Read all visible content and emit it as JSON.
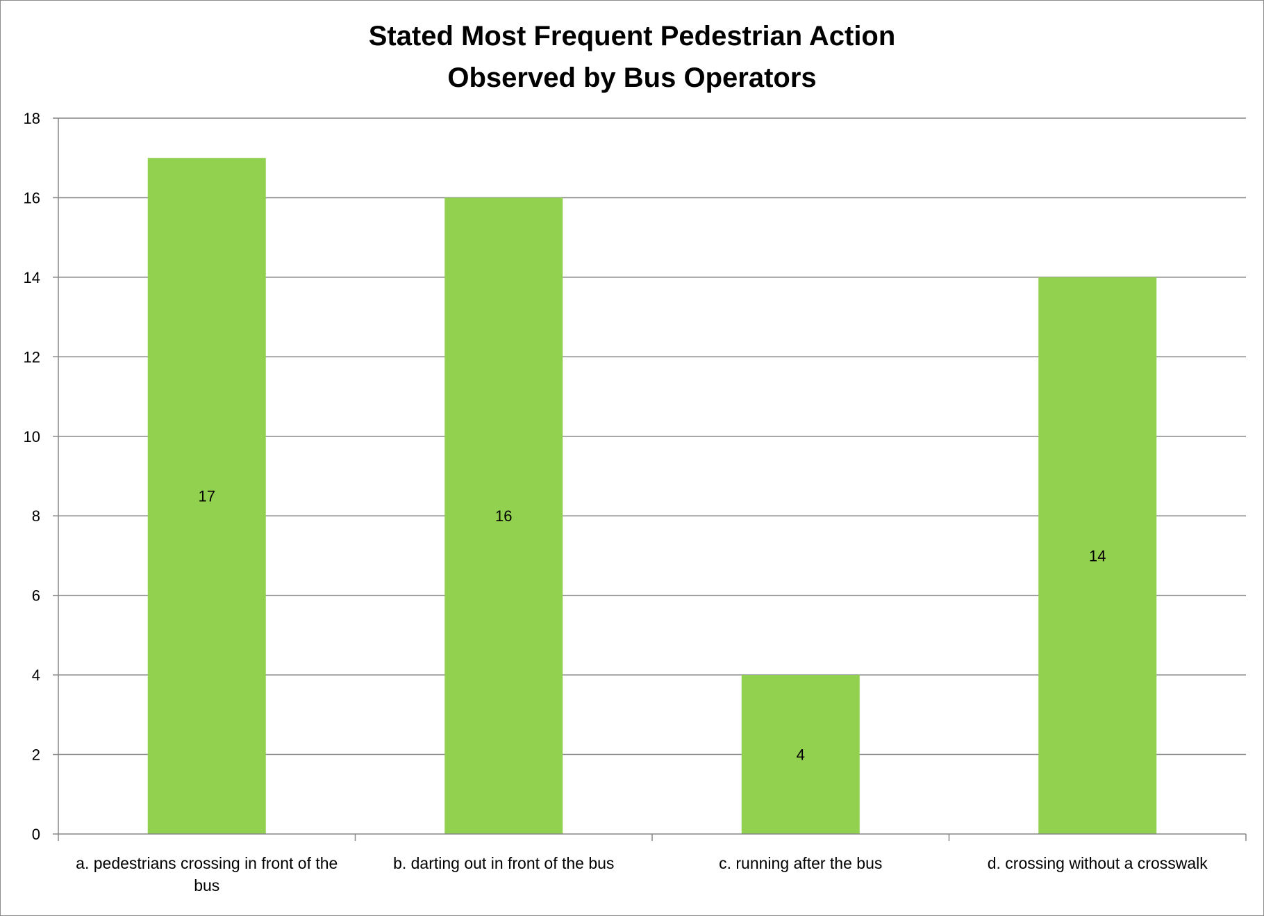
{
  "chart_data": {
    "type": "bar",
    "title_lines": [
      "Stated Most Frequent Pedestrian Action",
      "Observed by Bus Operators"
    ],
    "xlabel": "",
    "ylabel": "",
    "categories": [
      [
        "a. pedestrians crossing in front of the",
        "bus"
      ],
      [
        "b. darting out in front of the bus"
      ],
      [
        "c. running after the bus"
      ],
      [
        "d. crossing without a crosswalk"
      ]
    ],
    "values": [
      17,
      16,
      4,
      14
    ],
    "data_labels": [
      "17",
      "16",
      "4",
      "14"
    ],
    "ylim": [
      0,
      18
    ],
    "yticks": [
      0,
      2,
      4,
      6,
      8,
      10,
      12,
      14,
      16,
      18
    ],
    "grid": true,
    "legend": "none",
    "bar_color": "#92d050",
    "gridline_color": "#868686"
  }
}
